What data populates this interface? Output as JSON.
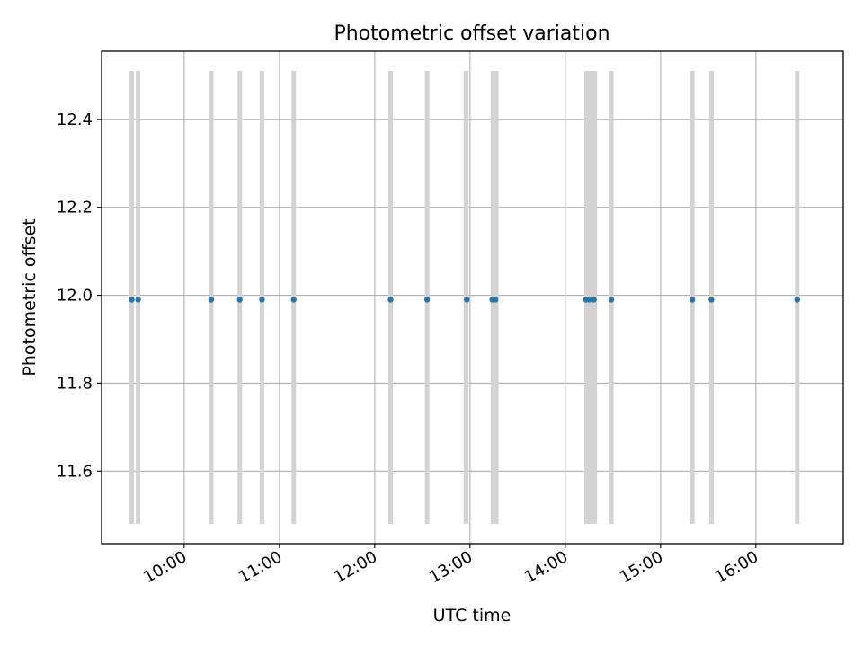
{
  "chart_data": {
    "type": "scatter",
    "title": "Photometric offset variation",
    "xlabel": "UTC time",
    "ylabel": "Photometric offset",
    "x_axis": {
      "type": "time",
      "range": [
        "09:08",
        "16:55"
      ],
      "ticks": [
        "10:00",
        "11:00",
        "12:00",
        "13:00",
        "14:00",
        "15:00",
        "16:00"
      ]
    },
    "y_axis": {
      "range": [
        11.435,
        12.555
      ],
      "ticks": [
        11.6,
        11.8,
        12.0,
        12.2,
        12.4
      ],
      "tick_labels": [
        "11.6",
        "11.8",
        "12.0",
        "12.2",
        "12.4"
      ]
    },
    "grid": true,
    "series": [
      {
        "marker_color": "#1f77b4",
        "x": [
          "09:27",
          "09:31",
          "10:17",
          "10:35",
          "10:49",
          "11:09",
          "12:10",
          "12:33",
          "12:58",
          "13:14",
          "13:16",
          "14:13",
          "14:15",
          "14:18",
          "14:29",
          "15:20",
          "15:32",
          "16:26"
        ],
        "y": [
          11.99,
          11.99,
          11.99,
          11.99,
          11.99,
          11.99,
          11.99,
          11.99,
          11.99,
          11.99,
          11.99,
          11.99,
          11.99,
          11.99,
          11.99,
          11.99,
          11.99,
          11.99
        ]
      }
    ],
    "exposure_bands": {
      "color": "#d3d3d3",
      "y_range": [
        11.48,
        12.51
      ],
      "intervals": [
        [
          "09:26",
          "09:28"
        ],
        [
          "09:30",
          "09:32"
        ],
        [
          "10:16",
          "10:18"
        ],
        [
          "10:34",
          "10:36"
        ],
        [
          "10:48",
          "10:50"
        ],
        [
          "11:08",
          "11:10"
        ],
        [
          "12:09",
          "12:11"
        ],
        [
          "12:32",
          "12:34"
        ],
        [
          "12:56",
          "12:59"
        ],
        [
          "13:13",
          "13:18"
        ],
        [
          "14:12",
          "14:20"
        ],
        [
          "14:28",
          "14:30"
        ],
        [
          "15:19",
          "15:21"
        ],
        [
          "15:31",
          "15:33"
        ],
        [
          "16:25",
          "16:27"
        ]
      ]
    }
  }
}
